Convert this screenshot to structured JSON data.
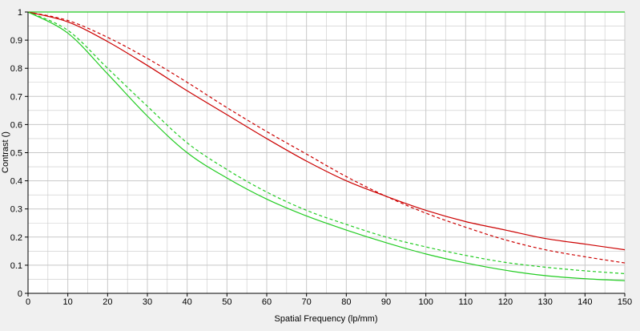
{
  "chart_data": {
    "type": "line",
    "title": "",
    "xlabel": "Spatial Frequency (lp/mm)",
    "ylabel": "Contrast ()",
    "xlim": [
      0,
      150
    ],
    "ylim": [
      0,
      1
    ],
    "x_ticks": [
      0,
      10,
      20,
      30,
      40,
      50,
      60,
      70,
      80,
      90,
      100,
      110,
      120,
      130,
      140,
      150
    ],
    "y_ticks": [
      0,
      0.1,
      0.2,
      0.3,
      0.4,
      0.5,
      0.6,
      0.7,
      0.8,
      0.9,
      1
    ],
    "grid": true,
    "legend": "none",
    "x": [
      0,
      10,
      20,
      30,
      40,
      50,
      60,
      70,
      80,
      90,
      100,
      110,
      120,
      130,
      140,
      150
    ],
    "series": [
      {
        "color": "#cc0000",
        "style": "solid",
        "values": [
          1.0,
          0.965,
          0.895,
          0.81,
          0.72,
          0.635,
          0.55,
          0.47,
          0.4,
          0.345,
          0.295,
          0.255,
          0.225,
          0.195,
          0.175,
          0.155
        ]
      },
      {
        "color": "#cc0000",
        "style": "dashed",
        "values": [
          1.0,
          0.97,
          0.91,
          0.835,
          0.75,
          0.66,
          0.575,
          0.495,
          0.415,
          0.345,
          0.285,
          0.235,
          0.19,
          0.155,
          0.13,
          0.108
        ]
      },
      {
        "color": "#22cc22",
        "style": "solid",
        "values": [
          1.0,
          0.925,
          0.78,
          0.63,
          0.5,
          0.41,
          0.335,
          0.275,
          0.225,
          0.18,
          0.14,
          0.108,
          0.082,
          0.063,
          0.052,
          0.045
        ]
      },
      {
        "color": "#22cc22",
        "style": "dashed",
        "values": [
          1.0,
          0.935,
          0.8,
          0.665,
          0.535,
          0.44,
          0.36,
          0.295,
          0.245,
          0.2,
          0.165,
          0.135,
          0.11,
          0.093,
          0.08,
          0.07
        ]
      }
    ]
  },
  "colors": {
    "plot_background": "#ffffff",
    "grid": "#c8c8c8",
    "axis": "#000000"
  }
}
